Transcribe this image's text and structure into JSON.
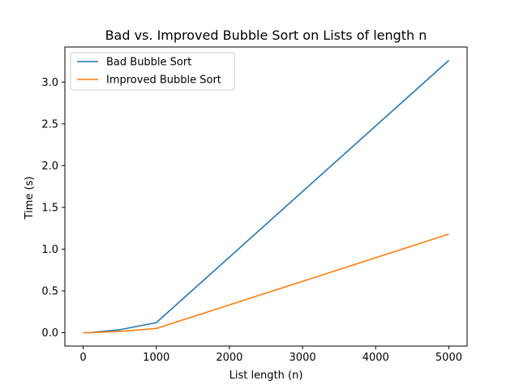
{
  "chart_data": {
    "type": "line",
    "title": "Bad vs. Improved Bubble Sort on Lists of length n",
    "xlabel": "List length (n)",
    "ylabel": "Time (s)",
    "xlim": [
      -250,
      5250
    ],
    "ylim": [
      -0.16,
      3.42
    ],
    "xticks": [
      0,
      1000,
      2000,
      3000,
      4000,
      5000
    ],
    "xtick_labels": [
      "0",
      "1000",
      "2000",
      "3000",
      "4000",
      "5000"
    ],
    "yticks": [
      0.0,
      0.5,
      1.0,
      1.5,
      2.0,
      2.5,
      3.0
    ],
    "ytick_labels": [
      "0.0",
      "0.5",
      "1.0",
      "1.5",
      "2.0",
      "2.5",
      "3.0"
    ],
    "grid": false,
    "legend_position": "upper-left",
    "series": [
      {
        "name": "Bad Bubble Sort",
        "color": "#1f77b4",
        "x": [
          0,
          10,
          100,
          500,
          1000,
          5000
        ],
        "y": [
          0.0,
          0.0,
          0.001,
          0.035,
          0.12,
          3.26
        ]
      },
      {
        "name": "Improved Bubble Sort",
        "color": "#ff7f0e",
        "x": [
          0,
          10,
          100,
          500,
          1000,
          5000
        ],
        "y": [
          0.0,
          0.0,
          0.0,
          0.015,
          0.05,
          1.18
        ]
      }
    ]
  }
}
